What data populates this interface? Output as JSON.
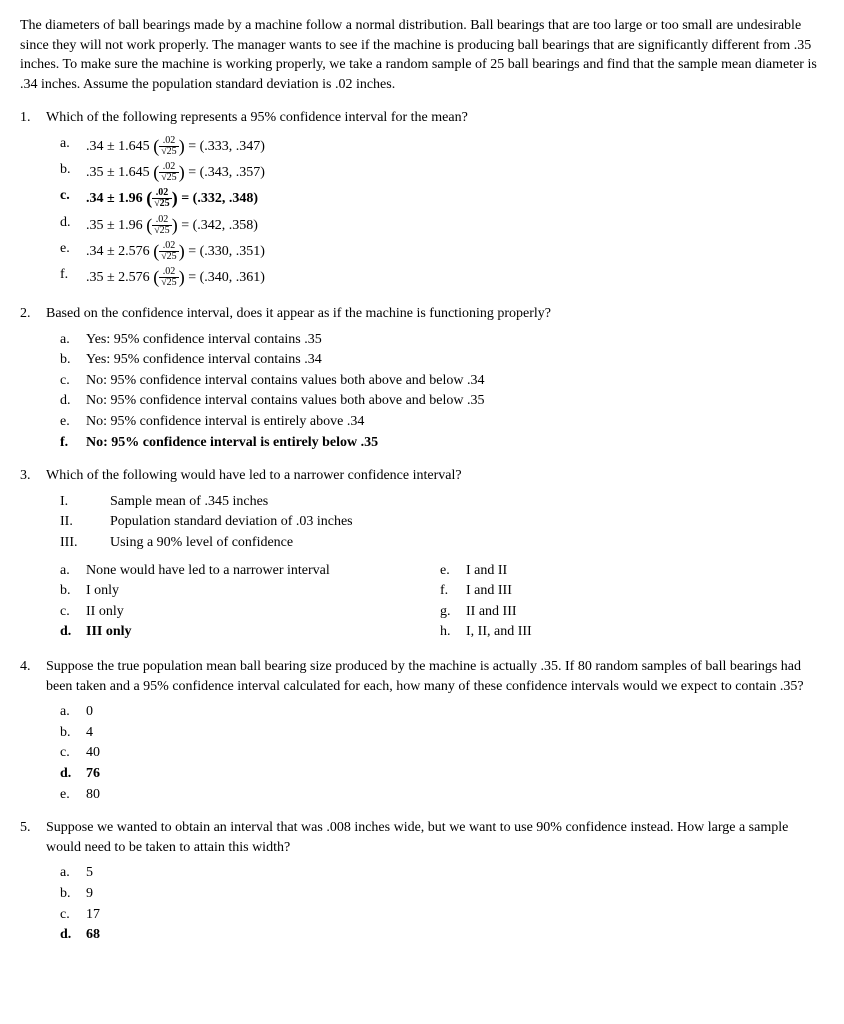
{
  "intro": "The diameters of ball bearings made by a machine follow a normal distribution. Ball bearings that are too large or too small are undesirable since they will not work properly. The manager wants to see if the machine is producing ball bearings that are significantly different from .35 inches. To make sure the machine is working properly, we take a random sample of 25 ball bearings and find that the sample mean diameter is .34 inches. Assume the population standard deviation is .02 inches.",
  "q1": {
    "num": "1.",
    "text": "Which of the following represents a 95% confidence interval for the mean?",
    "opts": {
      "a": {
        "pre": ".34 ± 1.645",
        "fracN": ".02",
        "fracD": "√25",
        "post": " = (.333, .347)"
      },
      "b": {
        "pre": ".35 ± 1.645",
        "fracN": ".02",
        "fracD": "√25",
        "post": " = (.343, .357)"
      },
      "c": {
        "pre": ".34 ± 1.96",
        "fracN": ".02",
        "fracD": "√25",
        "post": " = (.332, .348)"
      },
      "d": {
        "pre": ".35 ± 1.96",
        "fracN": ".02",
        "fracD": "√25",
        "post": " = (.342, .358)"
      },
      "e": {
        "pre": ".34 ± 2.576",
        "fracN": ".02",
        "fracD": "√25",
        "post": " = (.330, .351)"
      },
      "f": {
        "pre": ".35 ± 2.576",
        "fracN": ".02",
        "fracD": "√25",
        "post": " = (.340, .361)"
      }
    }
  },
  "q2": {
    "num": "2.",
    "text": "Based on the confidence interval, does it appear as if the machine is functioning properly?",
    "opts": {
      "a": "Yes: 95% confidence interval contains .35",
      "b": "Yes: 95% confidence interval contains .34",
      "c": "No: 95% confidence interval contains values both above and below .34",
      "d": "No: 95% confidence interval contains values both above and below .35",
      "e": "No: 95% confidence interval is entirely above .34",
      "f": "No: 95% confidence interval is entirely below .35"
    }
  },
  "q3": {
    "num": "3.",
    "text": "Which of the following would have led to a narrower confidence interval?",
    "roman": {
      "I": "Sample mean of .345 inches",
      "II": "Population standard deviation of .03 inches",
      "III": "Using a 90% level of confidence"
    },
    "left": {
      "a": "None would have led to a narrower interval",
      "b": "I only",
      "c": "II only",
      "d": "III only"
    },
    "right": {
      "e": "I and II",
      "f": "I and III",
      "g": "II and III",
      "h": "I, II, and III"
    }
  },
  "q4": {
    "num": "4.",
    "text": "Suppose the true population mean ball bearing size produced by the machine is actually .35. If 80 random samples of ball bearings had been taken and a 95% confidence interval calculated for each, how many of these confidence intervals would we expect to contain .35?",
    "opts": {
      "a": "0",
      "b": "4",
      "c": "40",
      "d": "76",
      "e": "80"
    }
  },
  "q5": {
    "num": "5.",
    "text": "Suppose we wanted to obtain an interval that was .008 inches wide, but we want to use 90% confidence instead. How large a sample would need to be taken to attain this width?",
    "opts": {
      "a": "5",
      "b": "9",
      "c": "17",
      "d": "68"
    }
  },
  "letters": {
    "a": "a.",
    "b": "b.",
    "c": "c.",
    "d": "d.",
    "e": "e.",
    "f": "f.",
    "g": "g.",
    "h": "h."
  },
  "romanLabels": {
    "I": "I.",
    "II": "II.",
    "III": "III."
  }
}
